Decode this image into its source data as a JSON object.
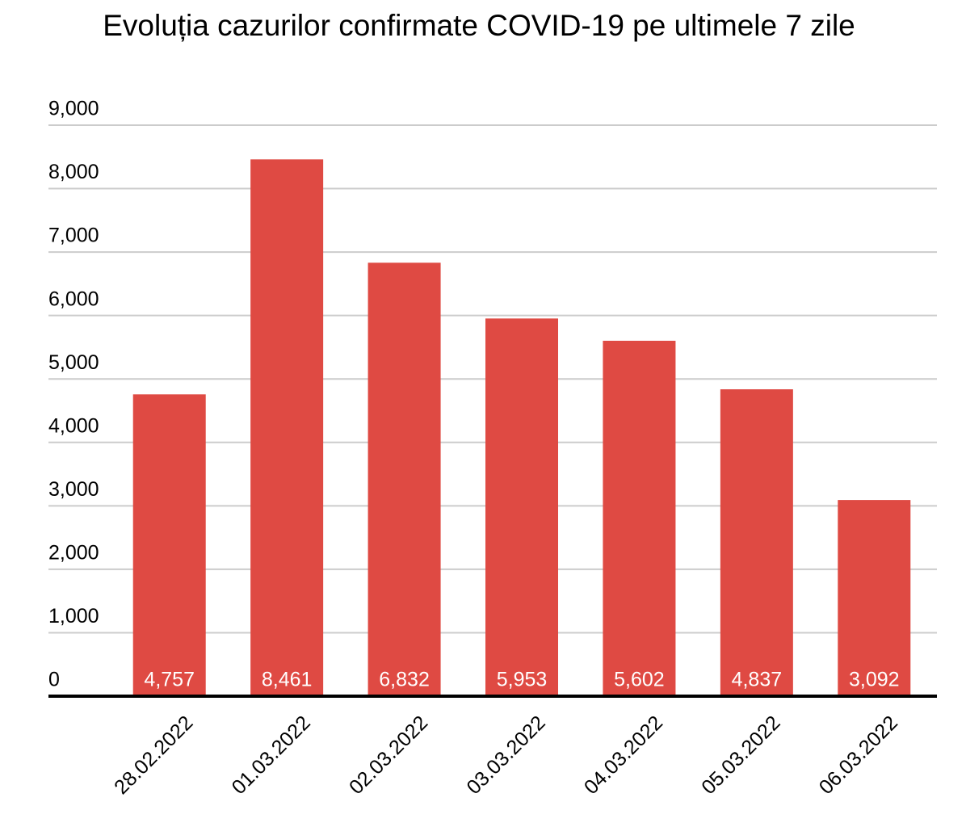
{
  "chart_data": {
    "type": "bar",
    "title": "Evoluția cazurilor confirmate COVID-19 pe ultimele 7 zile",
    "categories": [
      "28.02.2022",
      "01.03.2022",
      "02.03.2022",
      "03.03.2022",
      "04.03.2022",
      "05.03.2022",
      "06.03.2022"
    ],
    "values": [
      4757,
      8461,
      6832,
      5953,
      5602,
      4837,
      3092
    ],
    "value_labels": [
      "4,757",
      "8,461",
      "6,832",
      "5,953",
      "5,602",
      "4,837",
      "3,092"
    ],
    "color": "#df4a43",
    "ylim": [
      0,
      9000
    ],
    "yticks": [
      0,
      {
        "value": 1000,
        "label": "1,000"
      },
      {
        "value": 2000,
        "label": "2,000"
      },
      {
        "value": 3000,
        "label": "3,000"
      },
      {
        "value": 4000,
        "label": "4,000"
      },
      {
        "value": 5000,
        "label": "5,000"
      },
      {
        "value": 6000,
        "label": "6,000"
      },
      {
        "value": 7000,
        "label": "7,000"
      },
      {
        "value": 8000,
        "label": "8,000"
      },
      {
        "value": 9000,
        "label": "9,000"
      }
    ],
    "grid": true
  }
}
